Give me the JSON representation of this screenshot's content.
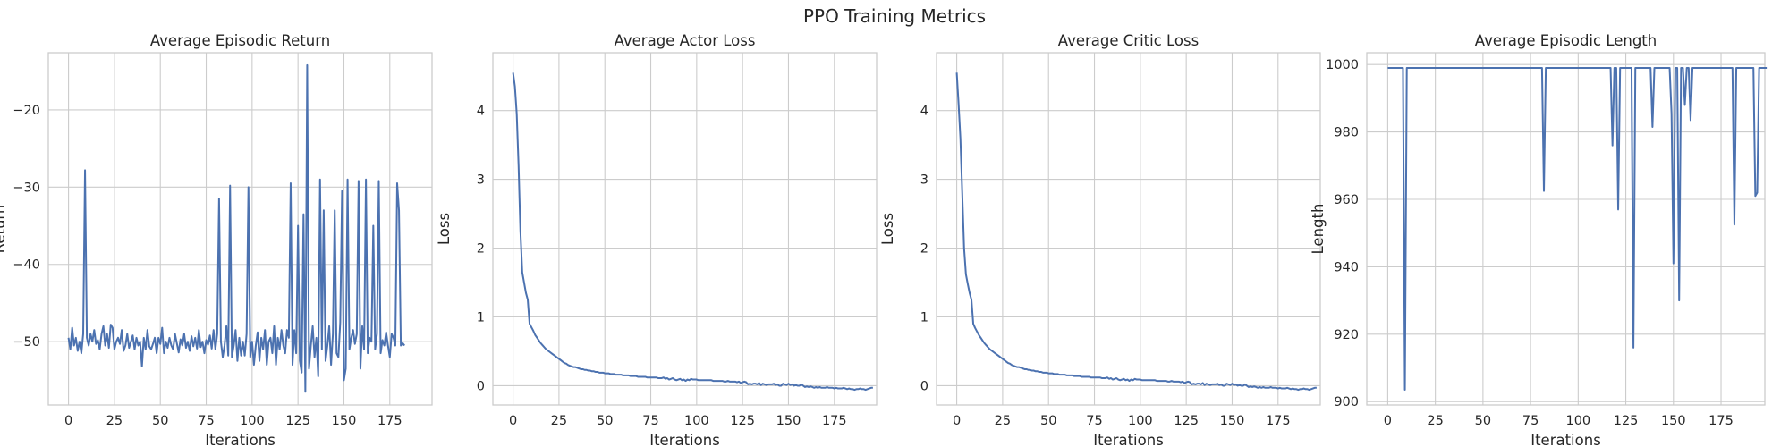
{
  "figure": {
    "title": "PPO Training Metrics"
  },
  "colors": {
    "series": "#4c72b0",
    "grid": "#cccccc",
    "text": "#262626"
  },
  "chart_data": [
    {
      "type": "line",
      "title": "Average Episodic Return",
      "xlabel": "Iterations",
      "ylabel": "Return",
      "xlim": [
        -11,
        198
      ],
      "ylim": [
        -58.2,
        -12.6
      ],
      "xticks": [
        0,
        25,
        50,
        75,
        100,
        125,
        150,
        175
      ],
      "yticks": [
        -20,
        -30,
        -40,
        -50
      ],
      "grid": true,
      "series": [
        {
          "x_start": 0,
          "x_step": 1,
          "values": [
            -49.5,
            -51.0,
            -48.2,
            -50.5,
            -49.5,
            -51.2,
            -50.0,
            -51.5,
            -49.0,
            -27.8,
            -49.5,
            -50.5,
            -49.0,
            -50.0,
            -48.5,
            -50.3,
            -49.8,
            -51.0,
            -49.0,
            -48.0,
            -50.5,
            -49.0,
            -50.8,
            -47.8,
            -48.2,
            -51.0,
            -50.0,
            -49.5,
            -50.3,
            -48.5,
            -51.2,
            -50.5,
            -49.0,
            -50.8,
            -50.0,
            -49.2,
            -51.0,
            -49.5,
            -50.5,
            -50.0,
            -53.2,
            -49.5,
            -51.0,
            -48.5,
            -50.6,
            -51.0,
            -50.3,
            -49.5,
            -51.5,
            -49.5,
            -50.3,
            -48.2,
            -51.5,
            -50.0,
            -50.8,
            -49.5,
            -50.5,
            -51.0,
            -49.0,
            -50.2,
            -51.4,
            -49.7,
            -50.5,
            -49.0,
            -50.8,
            -50.0,
            -51.2,
            -49.3,
            -50.6,
            -49.5,
            -50.9,
            -48.5,
            -50.7,
            -50.0,
            -51.5,
            -49.8,
            -50.4,
            -49.2,
            -50.9,
            -48.5,
            -51.0,
            -49.0,
            -31.5,
            -50.0,
            -52.0,
            -50.5,
            -48.0,
            -51.8,
            -29.8,
            -52.0,
            -50.5,
            -48.5,
            -52.5,
            -49.5,
            -51.8,
            -50.0,
            -51.8,
            -49.0,
            -30.0,
            -52.0,
            -50.0,
            -53.0,
            -50.5,
            -48.8,
            -52.5,
            -49.5,
            -51.0,
            -48.5,
            -53.0,
            -50.0,
            -49.5,
            -51.5,
            -48.0,
            -53.0,
            -49.5,
            -51.0,
            -48.5,
            -50.5,
            -51.5,
            -48.5,
            -49.5,
            -29.5,
            -53.0,
            -48.5,
            -51.5,
            -35.0,
            -52.5,
            -54.0,
            -33.5,
            -56.5,
            -14.2,
            -53.5,
            -50.5,
            -48.0,
            -52.0,
            -49.5,
            -54.5,
            -29.0,
            -51.0,
            -33.0,
            -52.5,
            -50.5,
            -48.0,
            -53.0,
            -49.0,
            -33.0,
            -51.5,
            -52.0,
            -47.5,
            -30.5,
            -55.0,
            -53.5,
            -29.0,
            -51.0,
            -49.5,
            -48.5,
            -50.3,
            -49.0,
            -29.2,
            -53.5,
            -48.0,
            -51.0,
            -29.0,
            -51.5,
            -49.5,
            -50.0,
            -35.0,
            -51.0,
            -49.0,
            -29.2,
            -51.5,
            -49.8,
            -50.5,
            -48.8,
            -50.5,
            -52.0,
            -49.0,
            -49.5,
            -50.5,
            -29.5,
            -33.0,
            -50.5,
            -50.2,
            -50.5
          ]
        }
      ]
    },
    {
      "type": "line",
      "title": "Average Actor Loss",
      "xlabel": "Iterations",
      "ylabel": "Loss",
      "xlim": [
        -11,
        198
      ],
      "ylim": [
        -0.28,
        4.84
      ],
      "xticks": [
        0,
        25,
        50,
        75,
        100,
        125,
        150,
        175
      ],
      "yticks": [
        0,
        1,
        2,
        3,
        4
      ],
      "grid": true,
      "series": [
        {
          "x_start": 0,
          "x_step": 1,
          "values": [
            4.55,
            4.35,
            3.95,
            3.2,
            2.25,
            1.65,
            1.5,
            1.35,
            1.25,
            0.9,
            0.85,
            0.8,
            0.74,
            0.7,
            0.66,
            0.62,
            0.59,
            0.56,
            0.53,
            0.51,
            0.49,
            0.47,
            0.45,
            0.43,
            0.41,
            0.39,
            0.37,
            0.35,
            0.33,
            0.32,
            0.3,
            0.29,
            0.28,
            0.27,
            0.27,
            0.26,
            0.25,
            0.24,
            0.24,
            0.23,
            0.23,
            0.22,
            0.22,
            0.21,
            0.21,
            0.2,
            0.2,
            0.19,
            0.19,
            0.19,
            0.18,
            0.18,
            0.18,
            0.17,
            0.17,
            0.17,
            0.16,
            0.16,
            0.16,
            0.16,
            0.15,
            0.15,
            0.15,
            0.15,
            0.14,
            0.14,
            0.14,
            0.14,
            0.13,
            0.13,
            0.13,
            0.13,
            0.13,
            0.12,
            0.12,
            0.12,
            0.12,
            0.12,
            0.12,
            0.11,
            0.11,
            0.11,
            0.12,
            0.1,
            0.11,
            0.09,
            0.1,
            0.11,
            0.09,
            0.08,
            0.09,
            0.1,
            0.08,
            0.09,
            0.07,
            0.09,
            0.08,
            0.1,
            0.09,
            0.09,
            0.09,
            0.08,
            0.08,
            0.08,
            0.08,
            0.08,
            0.08,
            0.08,
            0.08,
            0.07,
            0.07,
            0.07,
            0.07,
            0.07,
            0.07,
            0.06,
            0.06,
            0.07,
            0.06,
            0.06,
            0.06,
            0.06,
            0.05,
            0.06,
            0.04,
            0.05,
            0.06,
            0.05,
            0.02,
            0.03,
            0.02,
            0.03,
            0.03,
            0.02,
            0.04,
            0.01,
            0.03,
            0.02,
            0.01,
            0.02,
            0.02,
            0.02,
            0.03,
            0.01,
            0.02,
            0.0,
            0.0,
            0.03,
            0.02,
            0.01,
            0.03,
            0.01,
            0.02,
            0.0,
            0.01,
            0.0,
            0.0,
            0.02,
            0.0,
            -0.02,
            -0.01,
            -0.02,
            -0.01,
            -0.02,
            -0.03,
            -0.02,
            -0.03,
            -0.02,
            -0.03,
            -0.03,
            -0.03,
            -0.02,
            -0.03,
            -0.03,
            -0.03,
            -0.04,
            -0.03,
            -0.04,
            -0.04,
            -0.04,
            -0.03,
            -0.04,
            -0.05,
            -0.04,
            -0.05,
            -0.05,
            -0.06,
            -0.05,
            -0.05,
            -0.04,
            -0.05,
            -0.05,
            -0.06,
            -0.05,
            -0.04,
            -0.03,
            -0.03
          ]
        }
      ]
    },
    {
      "type": "line",
      "title": "Average Critic Loss",
      "xlabel": "Iterations",
      "ylabel": "Loss",
      "xlim": [
        -11,
        198
      ],
      "ylim": [
        -0.28,
        4.84
      ],
      "xticks": [
        0,
        25,
        50,
        75,
        100,
        125,
        150,
        175
      ],
      "yticks": [
        0,
        1,
        2,
        3,
        4
      ],
      "grid": true,
      "series": [
        {
          "x_start": 0,
          "x_step": 1,
          "values": [
            4.55,
            4.1,
            3.6,
            2.8,
            2.0,
            1.62,
            1.48,
            1.35,
            1.25,
            0.9,
            0.84,
            0.79,
            0.74,
            0.7,
            0.66,
            0.62,
            0.59,
            0.56,
            0.53,
            0.51,
            0.49,
            0.47,
            0.45,
            0.43,
            0.41,
            0.39,
            0.37,
            0.35,
            0.33,
            0.32,
            0.3,
            0.29,
            0.28,
            0.27,
            0.27,
            0.26,
            0.25,
            0.24,
            0.24,
            0.23,
            0.23,
            0.22,
            0.22,
            0.21,
            0.21,
            0.2,
            0.2,
            0.19,
            0.19,
            0.19,
            0.18,
            0.18,
            0.18,
            0.17,
            0.17,
            0.17,
            0.16,
            0.16,
            0.16,
            0.16,
            0.15,
            0.15,
            0.15,
            0.15,
            0.14,
            0.14,
            0.14,
            0.14,
            0.13,
            0.13,
            0.13,
            0.13,
            0.13,
            0.12,
            0.12,
            0.12,
            0.12,
            0.12,
            0.12,
            0.11,
            0.11,
            0.11,
            0.12,
            0.1,
            0.11,
            0.09,
            0.1,
            0.11,
            0.09,
            0.08,
            0.09,
            0.1,
            0.08,
            0.09,
            0.07,
            0.09,
            0.08,
            0.1,
            0.09,
            0.09,
            0.09,
            0.08,
            0.08,
            0.08,
            0.08,
            0.08,
            0.08,
            0.08,
            0.08,
            0.07,
            0.07,
            0.07,
            0.07,
            0.07,
            0.07,
            0.06,
            0.06,
            0.07,
            0.06,
            0.06,
            0.06,
            0.06,
            0.05,
            0.06,
            0.04,
            0.05,
            0.06,
            0.05,
            0.02,
            0.03,
            0.02,
            0.03,
            0.03,
            0.02,
            0.04,
            0.01,
            0.03,
            0.02,
            0.01,
            0.02,
            0.02,
            0.02,
            0.03,
            0.01,
            0.02,
            0.0,
            0.0,
            0.03,
            0.02,
            0.01,
            0.03,
            0.01,
            0.02,
            0.0,
            0.01,
            0.0,
            0.0,
            0.02,
            0.0,
            -0.02,
            -0.01,
            -0.02,
            -0.01,
            -0.02,
            -0.03,
            -0.02,
            -0.03,
            -0.02,
            -0.03,
            -0.03,
            -0.03,
            -0.02,
            -0.03,
            -0.03,
            -0.03,
            -0.04,
            -0.03,
            -0.04,
            -0.04,
            -0.04,
            -0.03,
            -0.04,
            -0.05,
            -0.04,
            -0.05,
            -0.05,
            -0.06,
            -0.05,
            -0.05,
            -0.04,
            -0.05,
            -0.05,
            -0.06,
            -0.05,
            -0.04,
            -0.03,
            -0.03
          ]
        }
      ]
    },
    {
      "type": "line",
      "title": "Average Episodic Length",
      "xlabel": "Iterations",
      "ylabel": "Length",
      "xlim": [
        -11,
        198
      ],
      "ylim": [
        899,
        1003.5
      ],
      "xticks": [
        0,
        25,
        50,
        75,
        100,
        125,
        150,
        175
      ],
      "yticks": [
        900,
        920,
        940,
        960,
        980,
        1000
      ],
      "grid": true,
      "series": [
        {
          "x_start": 0,
          "x_step": 1,
          "values": [
            999,
            999,
            999,
            999,
            999,
            999,
            999,
            999,
            999,
            903.5,
            999,
            999,
            999,
            999,
            999,
            999,
            999,
            999,
            999,
            999,
            999,
            999,
            999,
            999,
            999,
            999,
            999,
            999,
            999,
            999,
            999,
            999,
            999,
            999,
            999,
            999,
            999,
            999,
            999,
            999,
            999,
            999,
            999,
            999,
            999,
            999,
            999,
            999,
            999,
            999,
            999,
            999,
            999,
            999,
            999,
            999,
            999,
            999,
            999,
            999,
            999,
            999,
            999,
            999,
            999,
            999,
            999,
            999,
            999,
            999,
            999,
            999,
            999,
            999,
            999,
            999,
            999,
            999,
            999,
            999,
            999,
            999,
            962.5,
            999,
            999,
            999,
            999,
            999,
            999,
            999,
            999,
            999,
            999,
            999,
            999,
            999,
            999,
            999,
            999,
            999,
            999,
            999,
            999,
            999,
            999,
            999,
            999,
            999,
            999,
            999,
            999,
            999,
            999,
            999,
            999,
            999,
            999,
            999,
            976,
            999,
            999,
            957,
            999,
            999,
            999,
            999,
            999,
            999,
            999,
            916,
            999,
            999,
            999,
            999,
            999,
            999,
            999,
            999,
            999,
            981.5,
            999,
            999,
            999,
            999,
            999,
            999,
            999,
            999,
            999,
            985.5,
            941,
            999,
            999,
            930,
            999,
            999,
            988,
            999,
            999,
            983.5,
            999,
            999,
            999,
            999,
            999,
            999,
            999,
            999,
            999,
            999,
            999,
            999,
            999,
            999,
            999,
            999,
            999,
            999,
            999,
            999,
            999,
            999,
            952.5,
            999,
            999,
            999,
            999,
            999,
            999,
            999,
            999,
            999,
            999,
            961,
            962,
            999,
            999,
            999,
            999,
            999
          ]
        }
      ]
    }
  ]
}
